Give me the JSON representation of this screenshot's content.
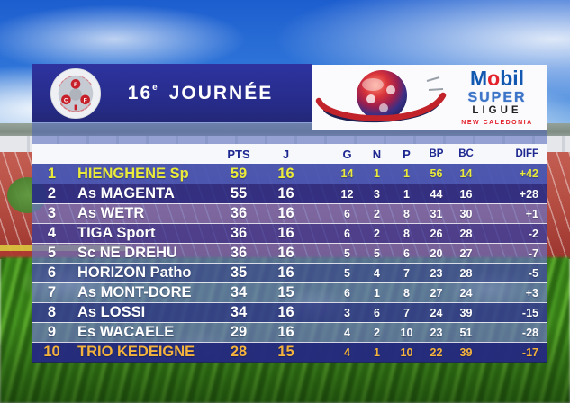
{
  "header": {
    "round_number": "16",
    "round_suffix": "e",
    "round_word": "JOURNÉE",
    "federation_letters": [
      "F",
      "C",
      "F"
    ],
    "sponsor": {
      "mobil_m": "M",
      "mobil_o": "o",
      "mobil_bil": "bil",
      "line2": "SUPER",
      "line3": "LIGUE",
      "line4": "NEW CALEDONIA"
    }
  },
  "chart_data": {
    "type": "table",
    "title": "16e JOURNÉE",
    "subtitle": "Mobil Super Ligue New Caledonia",
    "columns": [
      "PTS",
      "J",
      "G",
      "N",
      "P",
      "BP",
      "BC",
      "DIFF"
    ],
    "row_fields": [
      "rank",
      "team",
      "PTS",
      "J",
      "G",
      "N",
      "P",
      "BP",
      "BC",
      "DIFF"
    ],
    "rows": [
      [
        "1",
        "HIENGHENE Sp",
        "59",
        "16",
        "14",
        "1",
        "1",
        "56",
        "14",
        "+42"
      ],
      [
        "2",
        "As MAGENTA",
        "55",
        "16",
        "12",
        "3",
        "1",
        "44",
        "16",
        "+28"
      ],
      [
        "3",
        "As WETR",
        "36",
        "16",
        "6",
        "2",
        "8",
        "31",
        "30",
        "+1"
      ],
      [
        "4",
        "TIGA Sport",
        "36",
        "16",
        "6",
        "2",
        "8",
        "26",
        "28",
        "-2"
      ],
      [
        "5",
        "Sc NE DREHU",
        "36",
        "16",
        "5",
        "5",
        "6",
        "20",
        "27",
        "-7"
      ],
      [
        "6",
        "HORIZON Patho",
        "35",
        "16",
        "5",
        "4",
        "7",
        "23",
        "28",
        "-5"
      ],
      [
        "7",
        "As MONT-DORE",
        "34",
        "15",
        "6",
        "1",
        "8",
        "27",
        "24",
        "+3"
      ],
      [
        "8",
        "As LOSSI",
        "34",
        "16",
        "3",
        "6",
        "7",
        "24",
        "39",
        "-15"
      ],
      [
        "9",
        "Es WACAELE",
        "29",
        "16",
        "4",
        "2",
        "10",
        "23",
        "51",
        "-28"
      ],
      [
        "10",
        "TRIO KEDEIGNE",
        "28",
        "15",
        "4",
        "1",
        "10",
        "22",
        "39",
        "-17"
      ]
    ],
    "highlights": {
      "leader_row": 1,
      "last_row": 10
    }
  },
  "colors": {
    "header_navy": "#272c8c",
    "leader_text": "#e9ea3a",
    "last_place_text": "#f4b33c",
    "mobil_blue": "#1258b0",
    "mobil_red": "#e3222b",
    "column_header_text": "#1c2790"
  }
}
